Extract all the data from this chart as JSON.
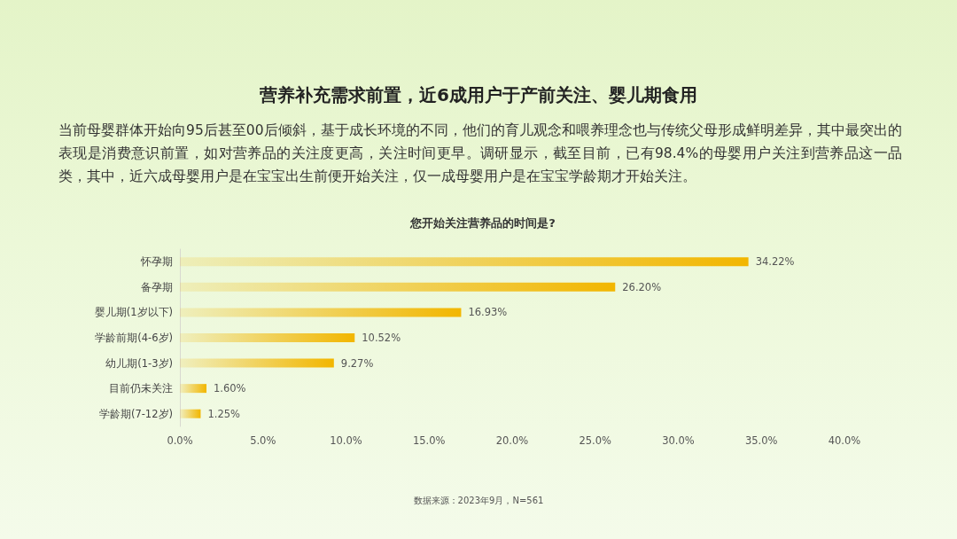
{
  "chart_data": {
    "type": "bar",
    "orientation": "horizontal",
    "title": "营养补充需求前置，近6成用户于产前关注、婴儿期食用",
    "subtitle": "当前母婴群体开始向95后甚至00后倾斜，基于成长环境的不同，他们的育儿观念和喂养理念也与传统父母形成鲜明差异，其中最突出的表现是消费意识前置，如对营养品的关注度更高，关注时间更早。调研显示，截至目前，已有98.4%的母婴用户关注到营养品这一品类，其中，近六成母婴用户是在宝宝出生前便开始关注，仅一成母婴用户是在宝宝学龄期才开始关注。",
    "annotations": [
      "您开始关注营养品的时间是?",
      "数据来源：2023年9月，N=561"
    ],
    "categories": [
      "怀孕期",
      "备孕期",
      "婴儿期(1岁以下)",
      "学龄前期(4-6岁)",
      "幼儿期(1-3岁)",
      "目前仍未关注",
      "学龄期(7-12岁)"
    ],
    "values": [
      34.22,
      26.2,
      16.93,
      10.52,
      9.27,
      1.6,
      1.25
    ],
    "value_labels": [
      "34.22%",
      "26.20%",
      "16.93%",
      "10.52%",
      "9.27%",
      "1.60%",
      "1.25%"
    ],
    "color": "#f2b600",
    "xlim": [
      0,
      40
    ],
    "xticks": [
      {
        "value": 0,
        "label": "0.0%"
      },
      {
        "value": 5,
        "label": "5.0%"
      },
      {
        "value": 10,
        "label": "10.0%"
      },
      {
        "value": 15,
        "label": "15.0%"
      },
      {
        "value": 20,
        "label": "20.0%"
      },
      {
        "value": 25,
        "label": "25.0%"
      },
      {
        "value": 30,
        "label": "30.0%"
      },
      {
        "value": 35,
        "label": "35.0%"
      },
      {
        "value": 40,
        "label": "40.0%"
      }
    ]
  }
}
